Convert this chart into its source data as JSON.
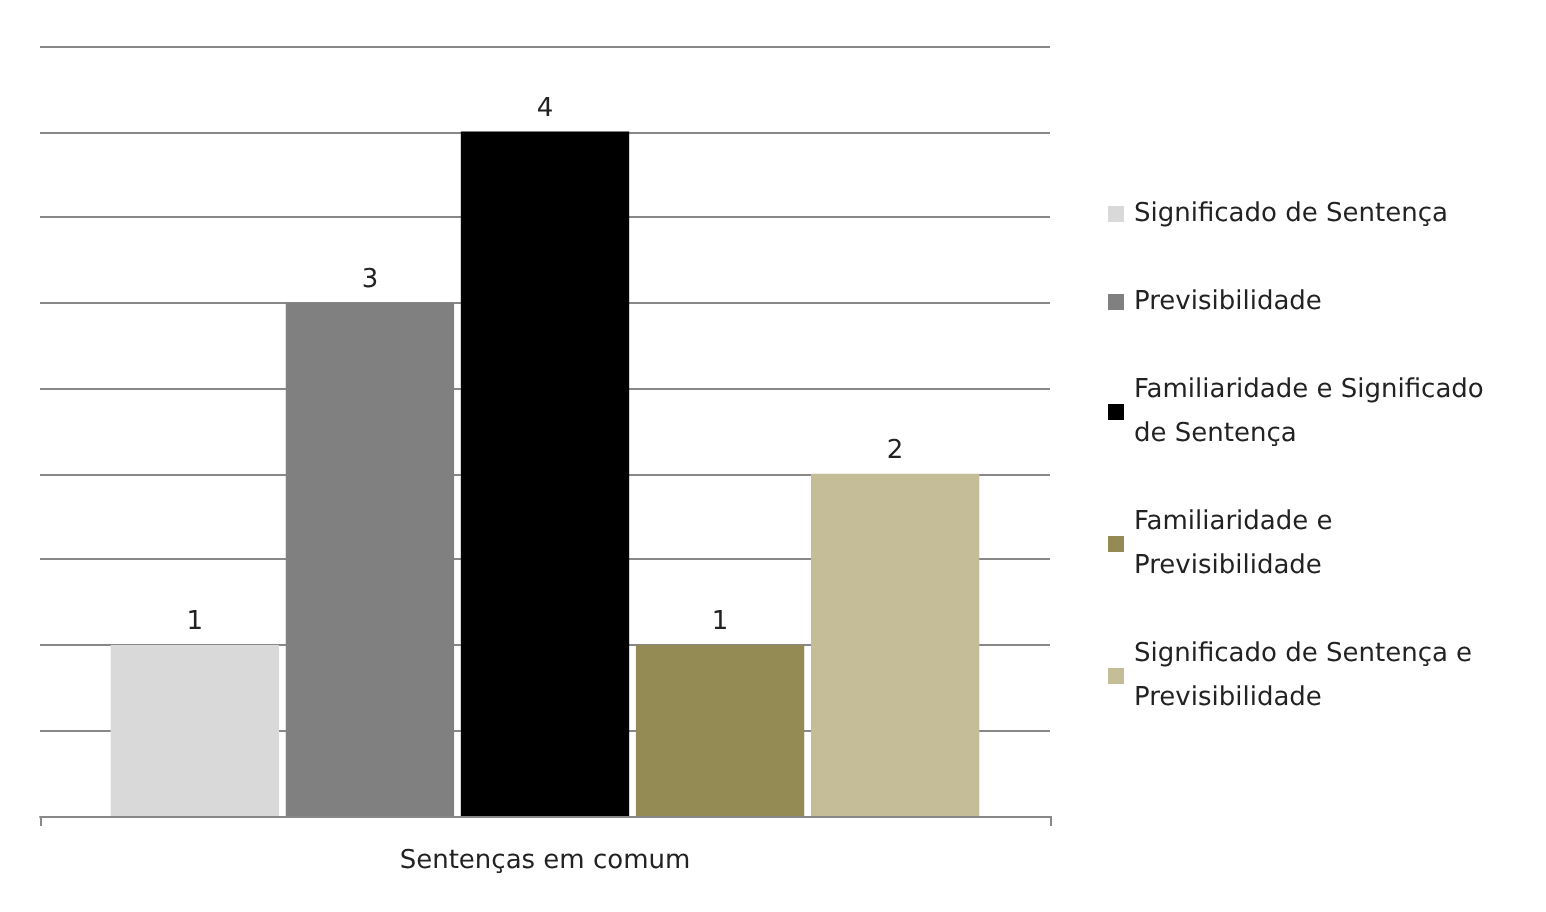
{
  "chart_data": {
    "type": "bar",
    "xlabel": "Sentenças em comum",
    "categories": [
      null
    ],
    "series": [
      {
        "name": "Significado de Sentença",
        "color": "#d9d9d9",
        "values": [
          1
        ]
      },
      {
        "name": "Previsibilidade",
        "color": "#808080",
        "values": [
          3
        ]
      },
      {
        "name": "Familiaridade e Significado de Sentença",
        "color": "#000000",
        "values": [
          4
        ]
      },
      {
        "name": "Familiaridade e Previsibilidade",
        "color": "#948a54",
        "values": [
          1
        ]
      },
      {
        "name": "Significado de Sentença e Previsibilidade",
        "color": "#c4bd97",
        "values": [
          2
        ]
      }
    ],
    "ylim": [
      0,
      4.5
    ],
    "yticks": [
      0,
      0.5,
      1,
      1.5,
      2,
      2.5,
      3,
      3.5,
      4,
      4.5
    ],
    "grid": "y",
    "legend": "right",
    "data_labels": true,
    "tick_labels": false
  }
}
